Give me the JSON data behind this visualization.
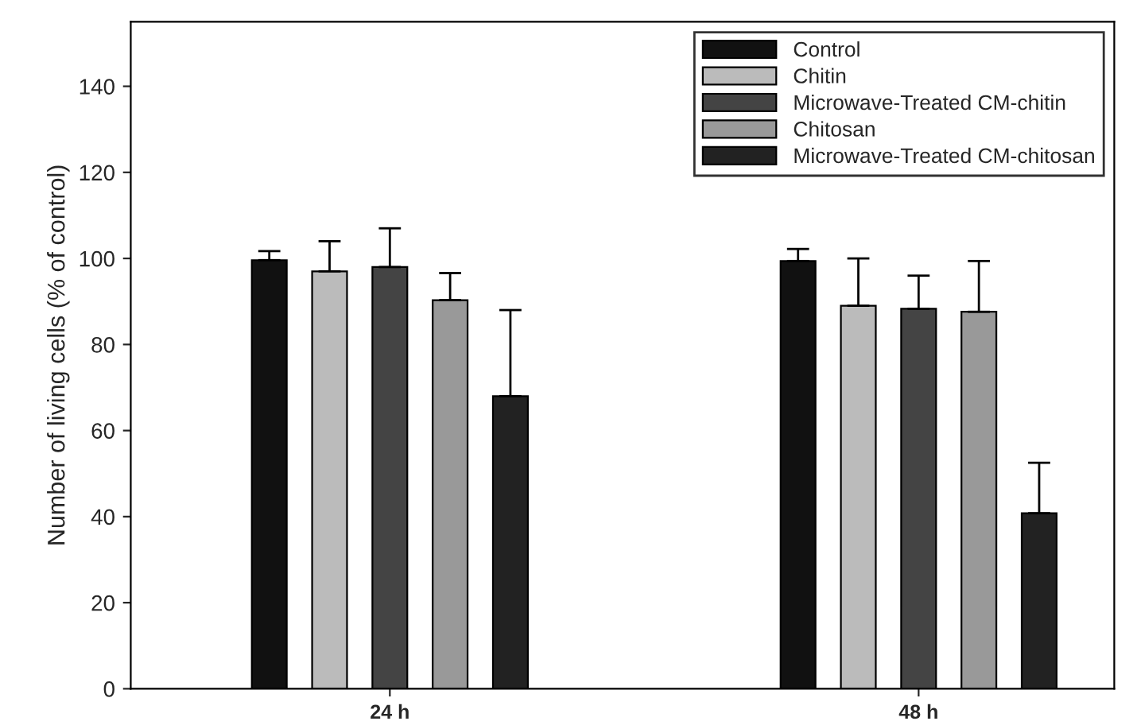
{
  "chart_data": {
    "type": "bar",
    "ylabel": "Number of living cells (% of control)",
    "categories": [
      "24 h",
      "48 h"
    ],
    "series": [
      {
        "name": "Control",
        "color": "#111111",
        "values": [
          99.6,
          99.4
        ],
        "errors": [
          [
            99.6,
            101.7
          ],
          [
            99.4,
            102.2
          ]
        ]
      },
      {
        "name": "Chitin",
        "color": "#bbbbbb",
        "values": [
          97,
          89
        ],
        "errors": [
          [
            97,
            104
          ],
          [
            89,
            100
          ]
        ]
      },
      {
        "name": "Microwave-Treated CM-chitin",
        "color": "#444444",
        "values": [
          98,
          88.3
        ],
        "errors": [
          [
            98,
            107
          ],
          [
            88.3,
            96
          ]
        ]
      },
      {
        "name": "Chitosan",
        "color": "#999999",
        "values": [
          90.3,
          87.6
        ],
        "errors": [
          [
            90.3,
            96.6
          ],
          [
            87.6,
            99.4
          ]
        ]
      },
      {
        "name": "Microwave-Treated CM-chitosan",
        "color": "#222222",
        "values": [
          68,
          40.8
        ],
        "errors": [
          [
            68,
            88
          ],
          [
            40.8,
            52.5
          ]
        ]
      }
    ],
    "ylim": [
      0,
      155
    ],
    "yticks": [
      0,
      20,
      40,
      60,
      80,
      100,
      120,
      140
    ],
    "grid": false,
    "legend": "top right"
  }
}
